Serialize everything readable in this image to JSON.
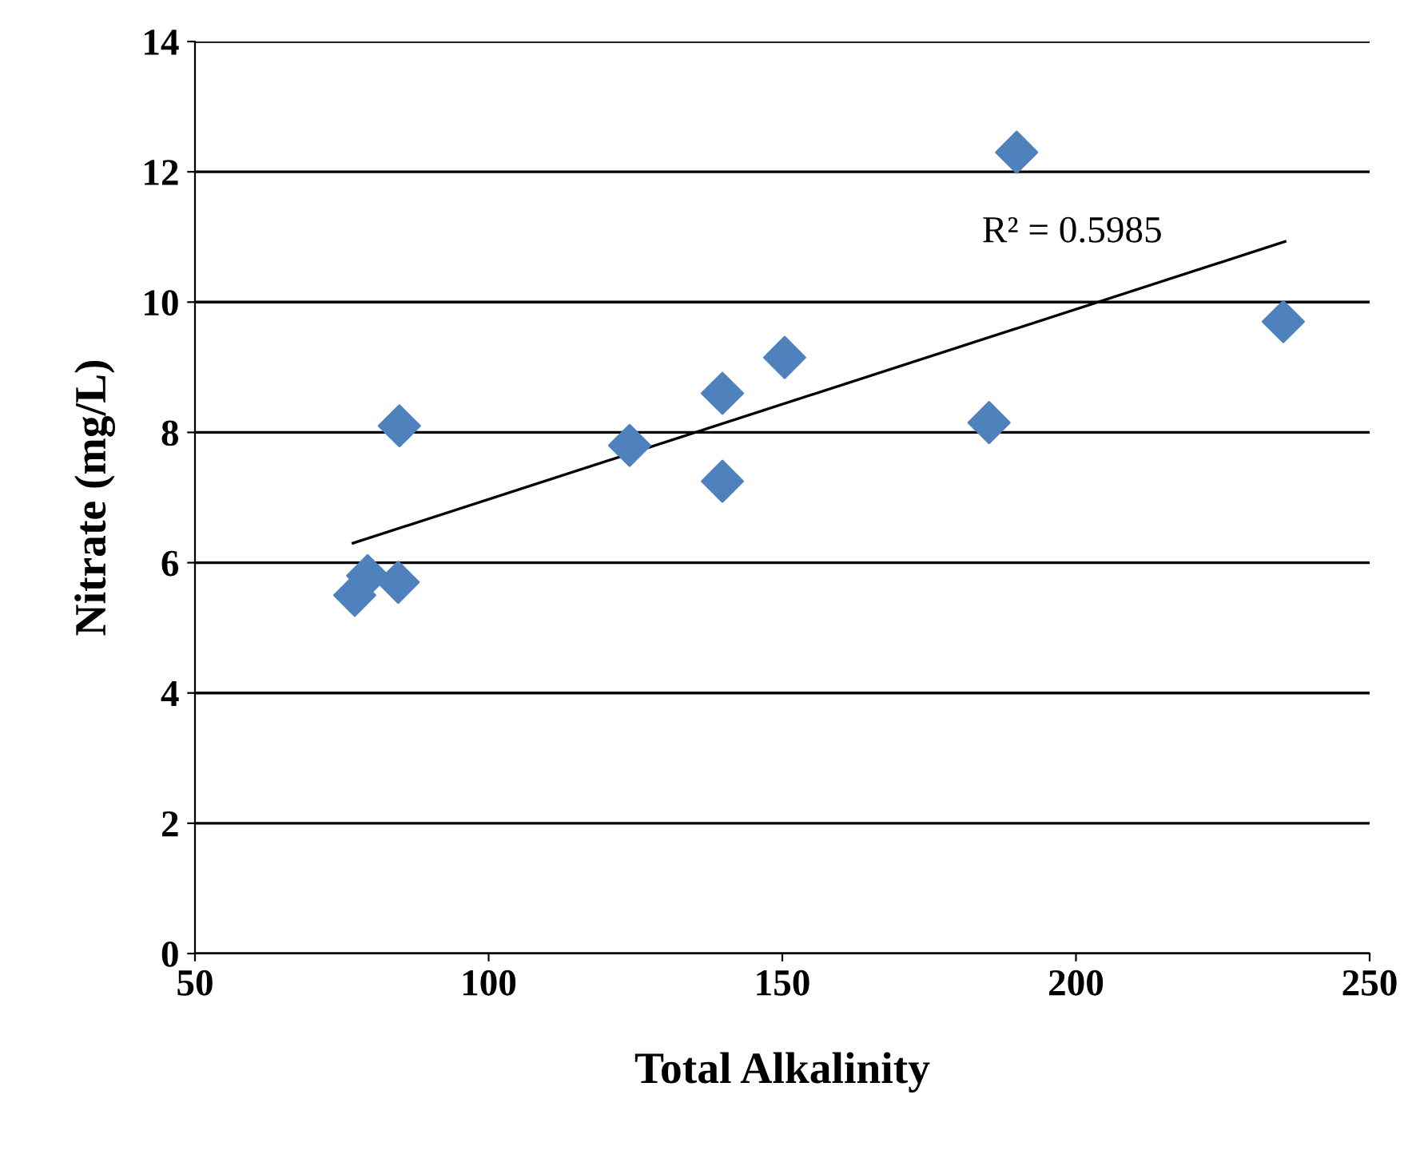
{
  "chart_data": {
    "type": "scatter",
    "xlabel": "Total Alkalinity",
    "ylabel": "Nitrate (mg/L)",
    "series": [
      {
        "color": "#4f81bd",
        "x": [
          77.2,
          79.4,
          84.6,
          84.8,
          124,
          139.8,
          139.8,
          150.4,
          185.2,
          189.9,
          235.3
        ],
        "values": [
          5.5,
          5.8,
          5.7,
          8.1,
          7.8,
          8.6,
          7.25,
          9.15,
          8.15,
          12.3,
          9.7
        ],
        "marker": "diamond"
      },
      {
        "type": "line",
        "color": "#000000",
        "x": [
          76.9,
          235.6
        ],
        "values": [
          6.3,
          10.93
        ],
        "marker": "none",
        "line_style": "solid"
      }
    ],
    "annotations": [
      "R² = 0.5985"
    ],
    "xlim": [
      50,
      250
    ],
    "xticks": [
      50,
      100,
      150,
      200,
      250
    ],
    "ylim": [
      0,
      14
    ],
    "yticks": [
      0,
      2,
      4,
      6,
      8,
      10,
      12,
      14
    ],
    "grid": "y",
    "legend": false
  }
}
